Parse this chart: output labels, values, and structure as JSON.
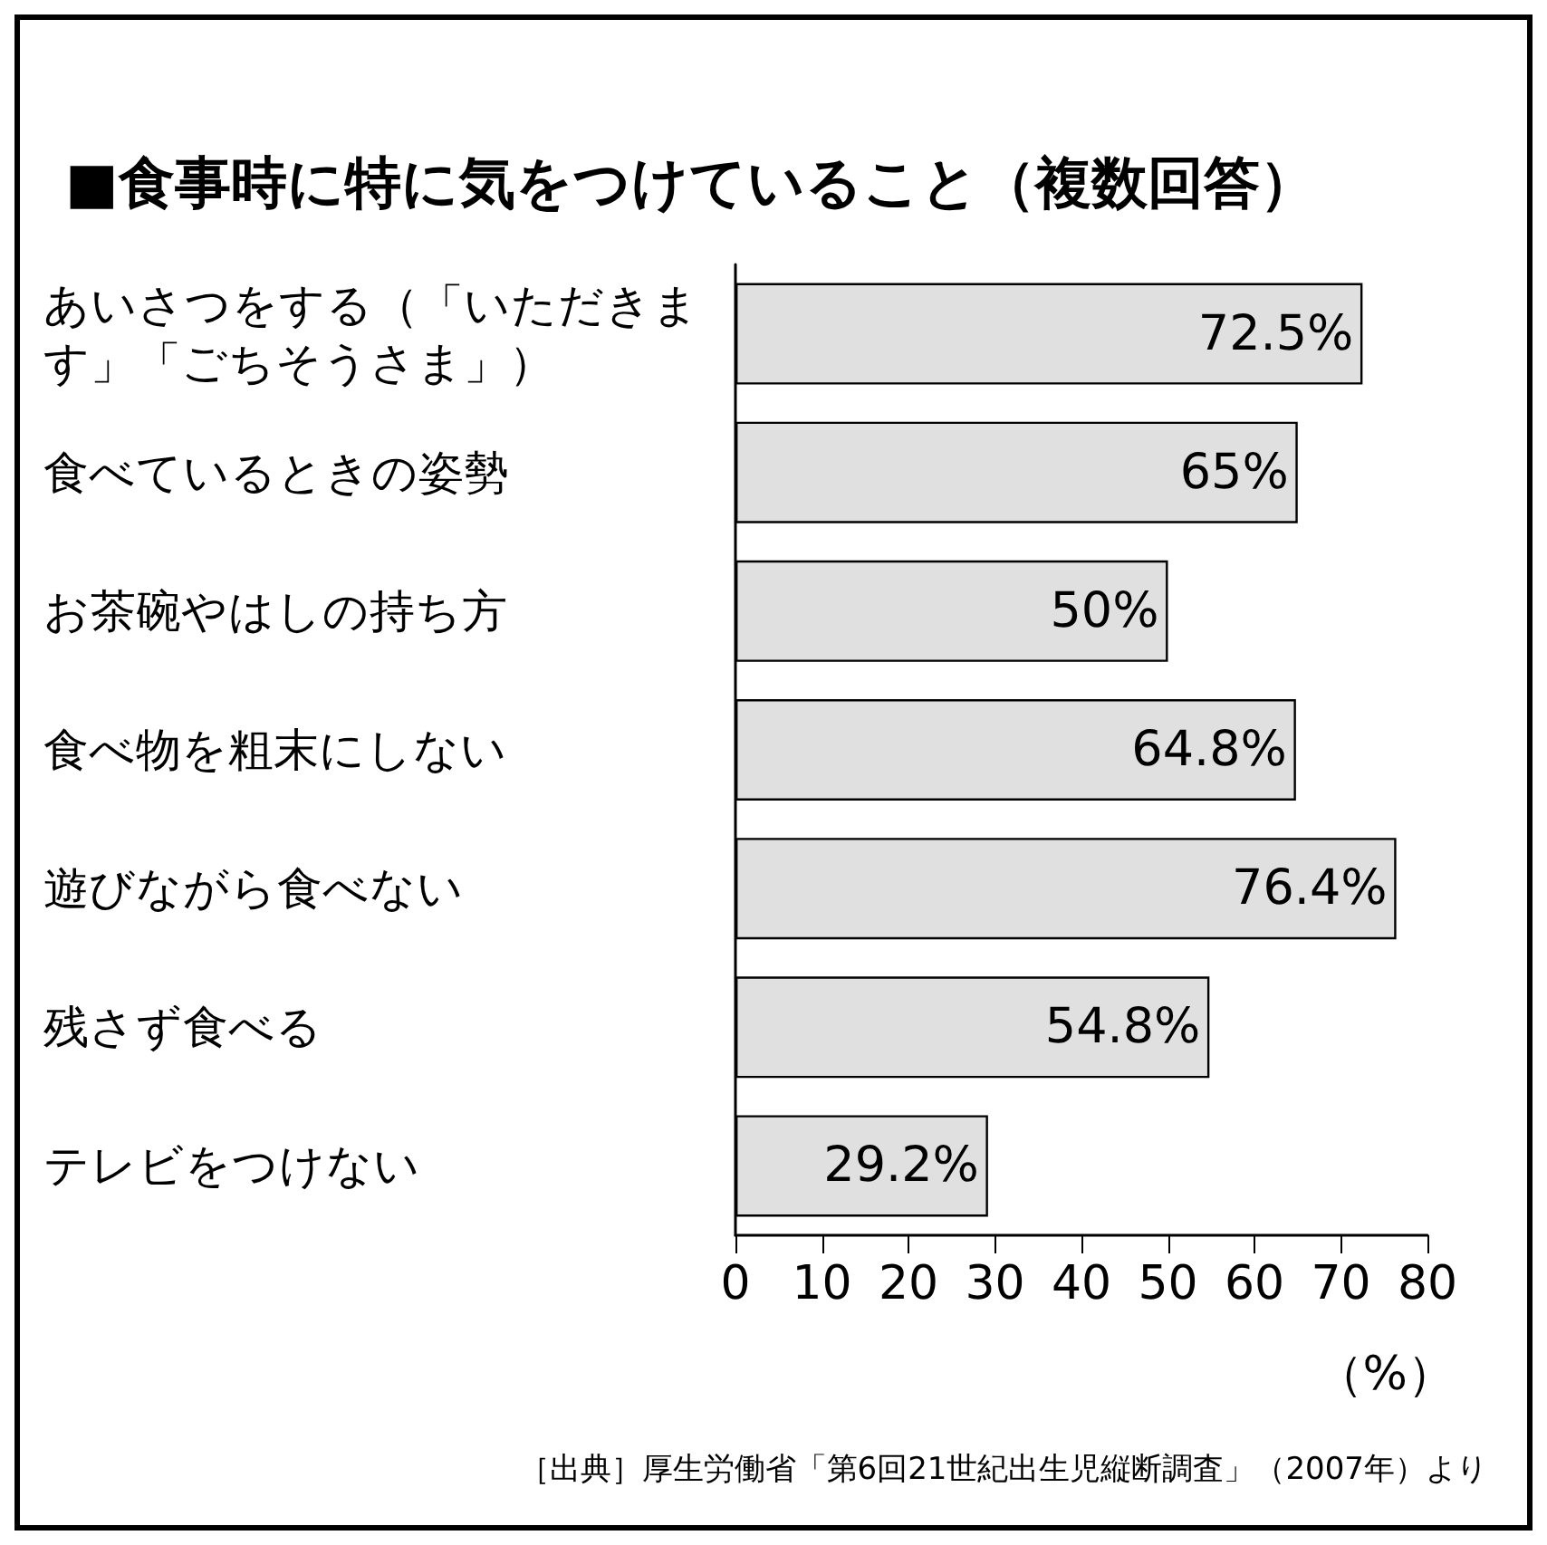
{
  "chart_data": {
    "type": "bar",
    "orientation": "horizontal",
    "title": "■食事時に特に気をつけていること（複数回答）",
    "categories": [
      "あいさつをする（「いただきます」「ごちそうさま」）",
      "食べているときの姿勢",
      "お茶碗やはしの持ち方",
      "食べ物を粗末にしない",
      "遊びながら食べない",
      "残さず食べる",
      "テレビをつけない"
    ],
    "values": [
      72.5,
      65,
      50,
      64.8,
      76.4,
      54.8,
      29.2
    ],
    "value_labels": [
      "72.5%",
      "65%",
      "50%",
      "64.8%",
      "76.4%",
      "54.8%",
      "29.2%"
    ],
    "color": "#e0e0e0",
    "xlim": [
      0,
      80
    ],
    "xticks": [
      0,
      10,
      20,
      30,
      40,
      50,
      60,
      70,
      80
    ],
    "xlabel": "（%）",
    "grid": false,
    "annotations": [
      "［出典］厚生労働省「第6回21世紀出生児縦断調査」（2007年）より"
    ]
  }
}
